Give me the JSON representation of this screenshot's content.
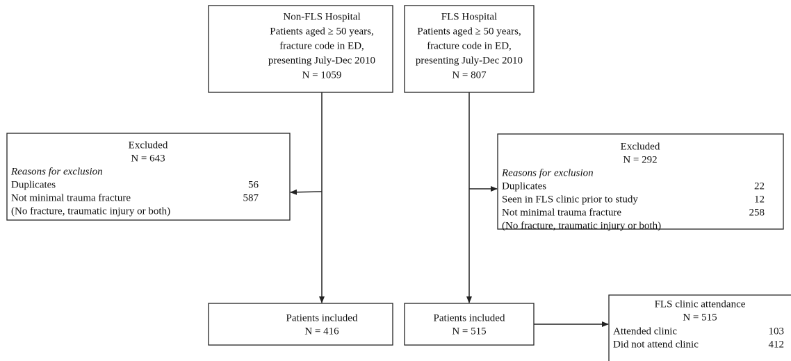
{
  "top_left": {
    "lines": [
      "Non-FLS Hospital",
      "Patients aged ≥ 50 years,",
      "fracture code in ED,",
      "presenting July-Dec 2010",
      "N = 1059"
    ]
  },
  "top_right": {
    "lines": [
      "FLS Hospital",
      "Patients aged ≥ 50 years,",
      "fracture code in ED,",
      "presenting July-Dec 2010",
      "N = 807"
    ]
  },
  "excluded_left": {
    "title": "Excluded",
    "n": "N = 643",
    "subtitle": "Reasons for exclusion",
    "rows": [
      [
        "Duplicates",
        "56"
      ],
      [
        "Not minimal trauma fracture",
        "587"
      ]
    ],
    "note": "(No fracture, traumatic injury or both)"
  },
  "excluded_right": {
    "title": "Excluded",
    "n": "N = 292",
    "subtitle": "Reasons for exclusion",
    "rows": [
      [
        "Duplicates",
        "22"
      ],
      [
        "Seen in FLS clinic prior to study",
        "12"
      ],
      [
        "Not minimal trauma fracture",
        "258"
      ]
    ],
    "note": "(No fracture, traumatic injury or both)"
  },
  "included_left": {
    "lines": [
      "Patients included",
      "N = 416"
    ]
  },
  "included_right": {
    "lines": [
      "Patients included",
      "N = 515"
    ]
  },
  "clinic": {
    "title": "FLS clinic attendance",
    "n": "N = 515",
    "rows": [
      [
        "Attended clinic",
        "103"
      ],
      [
        "Did not attend clinic",
        "412"
      ]
    ]
  }
}
